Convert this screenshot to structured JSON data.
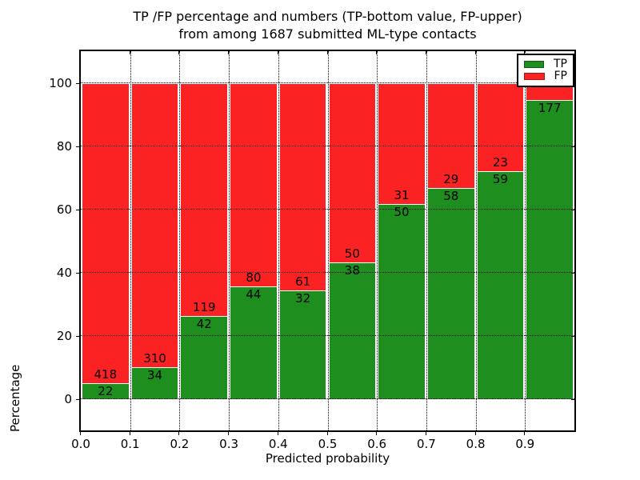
{
  "figure": {
    "title_line1": "TP /FP percentage and numbers (TP-bottom value, FP-upper)",
    "title_line2": "from among 1687 submitted ML-type contacts"
  },
  "axes": {
    "xlabel": "Predicted probability",
    "ylabel": "Percentage",
    "x_tick_labels": [
      "0.0",
      "0.1",
      "0.2",
      "0.3",
      "0.4",
      "0.5",
      "0.6",
      "0.7",
      "0.8",
      "0.9"
    ],
    "y_tick_labels": [
      "0",
      "20",
      "40",
      "60",
      "80",
      "100"
    ],
    "xlim": [
      0.0,
      1.0
    ],
    "ylim": [
      -10,
      110
    ],
    "grid": "dotted-black-both-axes"
  },
  "legend": {
    "position": "upper-right",
    "items": [
      {
        "label": "TP",
        "color": "#1e8e1e"
      },
      {
        "label": "FP",
        "color": "#fa2222"
      }
    ]
  },
  "chart_data": {
    "type": "bar",
    "stacked": true,
    "normalized": "each bin stacked to 100%",
    "title": "TP /FP percentage and numbers (TP-bottom value, FP-upper) from among 1687 submitted ML-type contacts",
    "xlabel": "Predicted probability",
    "ylabel": "Percentage",
    "total_contacts_in_title": 1687,
    "bin_width": 0.1,
    "categories": [
      "0.0-0.1",
      "0.1-0.2",
      "0.2-0.3",
      "0.3-0.4",
      "0.4-0.5",
      "0.5-0.6",
      "0.6-0.7",
      "0.7-0.8",
      "0.8-0.9",
      "0.9-1.0"
    ],
    "series": [
      {
        "name": "TP",
        "color": "#1e8e1e",
        "counts": [
          22,
          34,
          42,
          44,
          32,
          38,
          50,
          58,
          59,
          177
        ]
      },
      {
        "name": "FP",
        "color": "#fa2222",
        "counts": [
          418,
          310,
          119,
          80,
          61,
          50,
          31,
          29,
          23,
          null
        ]
      }
    ],
    "tp_percent": [
      5.0,
      9.88,
      26.09,
      35.48,
      34.41,
      43.18,
      61.73,
      66.67,
      71.95,
      94.65
    ],
    "bar_count_labels": {
      "tp": [
        "22",
        "34",
        "42",
        "44",
        "32",
        "38",
        "50",
        "58",
        "59",
        "177"
      ],
      "fp": [
        "418",
        "310",
        "119",
        "80",
        "61",
        "50",
        "31",
        "29",
        "23",
        ""
      ]
    },
    "ylim": [
      -10,
      110
    ],
    "xlim": [
      0.0,
      1.0
    ],
    "legend_position": "upper-right"
  }
}
